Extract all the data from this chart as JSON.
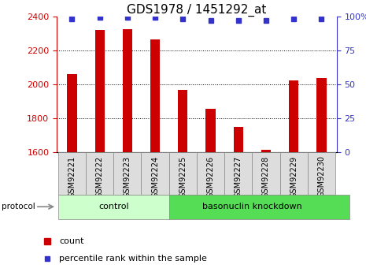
{
  "title": "GDS1978 / 1451292_at",
  "samples": [
    "GSM92221",
    "GSM92222",
    "GSM92223",
    "GSM92224",
    "GSM92225",
    "GSM92226",
    "GSM92227",
    "GSM92228",
    "GSM92229",
    "GSM92230"
  ],
  "count_values": [
    2060,
    2320,
    2325,
    2265,
    1965,
    1855,
    1750,
    1615,
    2025,
    2035
  ],
  "percentile_values": [
    98,
    99,
    99,
    99,
    98,
    97,
    97,
    97,
    98,
    98
  ],
  "ylim_left": [
    1600,
    2400
  ],
  "ylim_right": [
    0,
    100
  ],
  "control_indices": [
    0,
    1,
    2,
    3
  ],
  "knockdown_indices": [
    4,
    5,
    6,
    7,
    8,
    9
  ],
  "control_label": "control",
  "knockdown_label": "basonuclin knockdown",
  "protocol_label": "protocol",
  "bar_color": "#cc0000",
  "dot_color": "#3333cc",
  "left_tick_color": "#cc0000",
  "right_tick_color": "#3333cc",
  "control_bg": "#ccffcc",
  "knockdown_bg": "#55dd55",
  "sample_bg": "#dddddd",
  "legend_count_label": "count",
  "legend_pct_label": "percentile rank within the sample",
  "title_fontsize": 11,
  "tick_fontsize": 8,
  "grid_yticks": [
    1800,
    2000,
    2200
  ]
}
